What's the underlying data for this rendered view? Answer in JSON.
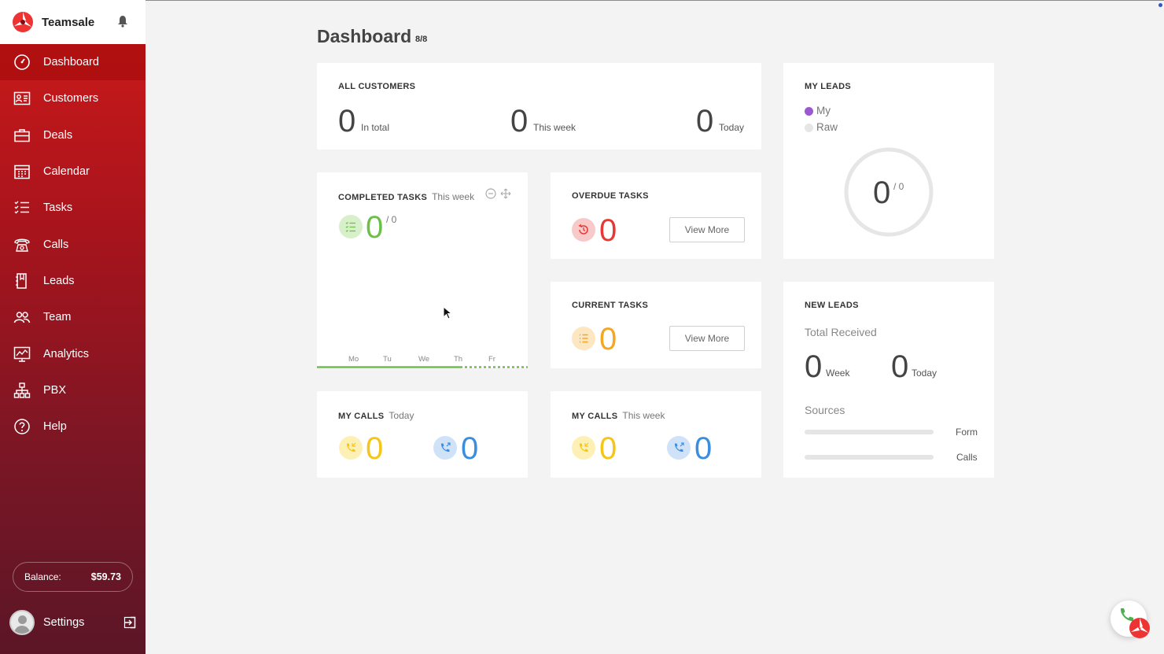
{
  "brand": {
    "name": "Teamsale"
  },
  "sidebar": {
    "items": [
      {
        "label": "Dashboard",
        "icon": "speedometer-icon",
        "active": true
      },
      {
        "label": "Customers",
        "icon": "contact-card-icon"
      },
      {
        "label": "Deals",
        "icon": "briefcase-icon"
      },
      {
        "label": "Calendar",
        "icon": "calendar-icon"
      },
      {
        "label": "Tasks",
        "icon": "task-list-icon"
      },
      {
        "label": "Calls",
        "icon": "telephone-icon"
      },
      {
        "label": "Leads",
        "icon": "lead-document-icon"
      },
      {
        "label": "Team",
        "icon": "people-icon"
      },
      {
        "label": "Analytics",
        "icon": "chart-icon"
      },
      {
        "label": "PBX",
        "icon": "network-icon"
      },
      {
        "label": "Help",
        "icon": "help-icon"
      }
    ],
    "balance_label": "Balance:",
    "balance_value": "$59.73",
    "settings_label": "Settings"
  },
  "page": {
    "title": "Dashboard",
    "count": "8/8"
  },
  "all_customers": {
    "title": "ALL CUSTOMERS",
    "total": "0",
    "total_label": "In total",
    "week": "0",
    "week_label": "This week",
    "today": "0",
    "today_label": "Today"
  },
  "my_leads": {
    "title": "MY LEADS",
    "legend_my": "My",
    "legend_raw": "Raw",
    "value": "0",
    "of": "/ 0",
    "color_my": "#9b59d0",
    "color_raw": "#e6e6e6"
  },
  "completed_tasks": {
    "title": "COMPLETED TASKS",
    "subtitle": "This week",
    "value": "0",
    "of": "/ 0",
    "days": [
      "Mo",
      "Tu",
      "We",
      "Th",
      "Fr"
    ],
    "color": "#6cc04a"
  },
  "overdue_tasks": {
    "title": "OVERDUE TASKS",
    "value": "0",
    "button": "View More",
    "color": "#e53935"
  },
  "current_tasks": {
    "title": "CURRENT TASKS",
    "value": "0",
    "button": "View More",
    "color": "#f5a623"
  },
  "new_leads": {
    "title": "NEW LEADS",
    "total_received": "Total Received",
    "week": "0",
    "week_label": "Week",
    "today": "0",
    "today_label": "Today",
    "sources_label": "Sources",
    "sources": [
      {
        "label": "Form",
        "value": 0
      },
      {
        "label": "Calls",
        "value": 0
      }
    ]
  },
  "my_calls_today": {
    "title": "MY CALLS",
    "subtitle": "Today",
    "incoming": "0",
    "outgoing": "0"
  },
  "my_calls_week": {
    "title": "MY CALLS",
    "subtitle": "This week",
    "incoming": "0",
    "outgoing": "0"
  },
  "colors": {
    "accent": "#c8161d",
    "incoming": "#f5c518",
    "outgoing": "#3b8de0",
    "green": "#6cc04a"
  }
}
